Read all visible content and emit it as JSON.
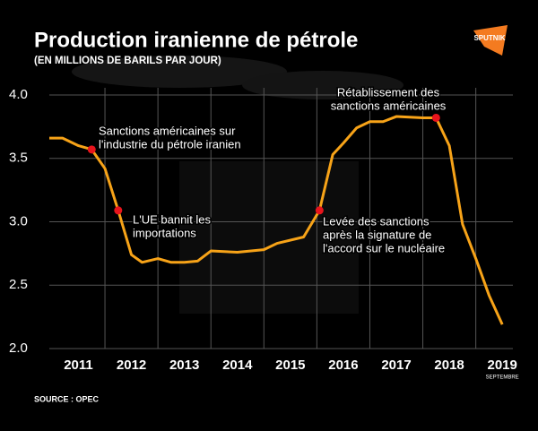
{
  "chart_data": {
    "type": "line",
    "title": "Production iranienne de pétrole",
    "subtitle": "(EN MILLIONS DE BARILS PAR JOUR)",
    "logo": "SPUTNIK",
    "source": "SOURCE : OPEC",
    "x_note": "SEPTEMBRE",
    "xlim": [
      2010.95,
      2019.7
    ],
    "xticks": [
      2011,
      2012,
      2013,
      2014,
      2015,
      2016,
      2017,
      2018,
      2019
    ],
    "ylim": [
      2.0,
      4.0
    ],
    "yticks": [
      {
        "value": 2.0,
        "label": "2.0"
      },
      2.5,
      {
        "value": 3.0,
        "label": "3.0"
      },
      3.5,
      {
        "value": 4.0,
        "label": "4.0"
      }
    ],
    "grid": true,
    "series": [
      {
        "color": "#f7a318",
        "x": [
          2010.95,
          2011.2,
          2011.5,
          2011.75,
          2012.0,
          2012.25,
          2012.5,
          2012.7,
          2013.0,
          2013.25,
          2013.5,
          2013.75,
          2014.0,
          2014.5,
          2015.0,
          2015.25,
          2015.75,
          2016.05,
          2016.3,
          2016.5,
          2016.75,
          2017.0,
          2017.25,
          2017.5,
          2018.0,
          2018.25,
          2018.5,
          2018.75,
          2019.0,
          2019.25,
          2019.5
        ],
        "values": [
          3.66,
          3.66,
          3.6,
          3.57,
          3.42,
          3.09,
          2.74,
          2.68,
          2.71,
          2.68,
          2.68,
          2.69,
          2.77,
          2.76,
          2.78,
          2.83,
          2.88,
          3.09,
          3.53,
          3.62,
          3.74,
          3.79,
          3.79,
          3.83,
          3.82,
          3.82,
          3.6,
          2.98,
          2.71,
          2.42,
          2.19
        ]
      }
    ],
    "events": {
      "color": "#e8141c",
      "x": [
        2011.75,
        2012.25,
        2016.05,
        2018.25
      ],
      "values": [
        3.57,
        3.09,
        3.09,
        3.82
      ],
      "labels": [
        [
          "Sanctions américaines sur",
          "l'industrie du pétrole iranien"
        ],
        [
          "L'UE bannit les",
          "importations"
        ],
        [
          "Levée des sanctions",
          "après la signature de",
          "l'accord sur le nucléaire"
        ],
        [
          "Rétablissement des",
          "sanctions américaines"
        ]
      ]
    }
  }
}
